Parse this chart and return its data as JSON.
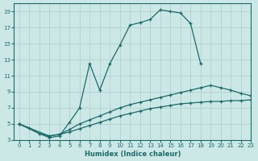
{
  "xlabel": "Humidex (Indice chaleur)",
  "bg_color": "#cce8e6",
  "grid_color": "#aaccca",
  "line_color": "#1a6b6b",
  "xlim": [
    -0.5,
    23
  ],
  "ylim": [
    3,
    20
  ],
  "xticks": [
    0,
    1,
    2,
    3,
    4,
    5,
    6,
    7,
    8,
    9,
    10,
    11,
    12,
    13,
    14,
    15,
    16,
    17,
    18,
    19,
    20,
    21,
    22,
    23
  ],
  "yticks": [
    3,
    5,
    7,
    9,
    11,
    13,
    15,
    17,
    19
  ],
  "curve1": {
    "x": [
      0,
      1,
      2,
      3,
      4,
      5,
      6,
      7,
      8,
      9,
      10,
      11,
      12,
      13,
      14,
      15,
      16,
      17,
      18
    ],
    "y": [
      5.0,
      4.5,
      3.8,
      3.3,
      3.5,
      5.2,
      7.0,
      12.5,
      9.2,
      12.5,
      14.8,
      17.3,
      17.6,
      18.0,
      19.2,
      19.0,
      18.8,
      17.5,
      12.5
    ]
  },
  "curve2": {
    "x": [
      0,
      3,
      4,
      5,
      6,
      7,
      8,
      9,
      10,
      11,
      12,
      13,
      14,
      15,
      16,
      17,
      18,
      19,
      20,
      21,
      22,
      23
    ],
    "y": [
      5.0,
      3.5,
      3.7,
      4.3,
      5.0,
      5.5,
      6.0,
      6.5,
      7.0,
      7.4,
      7.7,
      8.0,
      8.3,
      8.6,
      8.9,
      9.2,
      9.5,
      9.8,
      9.5,
      9.2,
      8.8,
      8.5
    ]
  },
  "curve3": {
    "x": [
      0,
      2,
      3,
      4,
      5,
      6,
      7,
      8,
      9,
      10,
      11,
      12,
      13,
      14,
      15,
      16,
      17,
      18,
      19,
      20,
      21,
      22,
      23
    ],
    "y": [
      5.0,
      3.8,
      3.5,
      3.7,
      4.0,
      4.4,
      4.8,
      5.2,
      5.6,
      6.0,
      6.3,
      6.6,
      6.9,
      7.1,
      7.3,
      7.5,
      7.6,
      7.7,
      7.8,
      7.8,
      7.9,
      7.9,
      8.0
    ]
  }
}
